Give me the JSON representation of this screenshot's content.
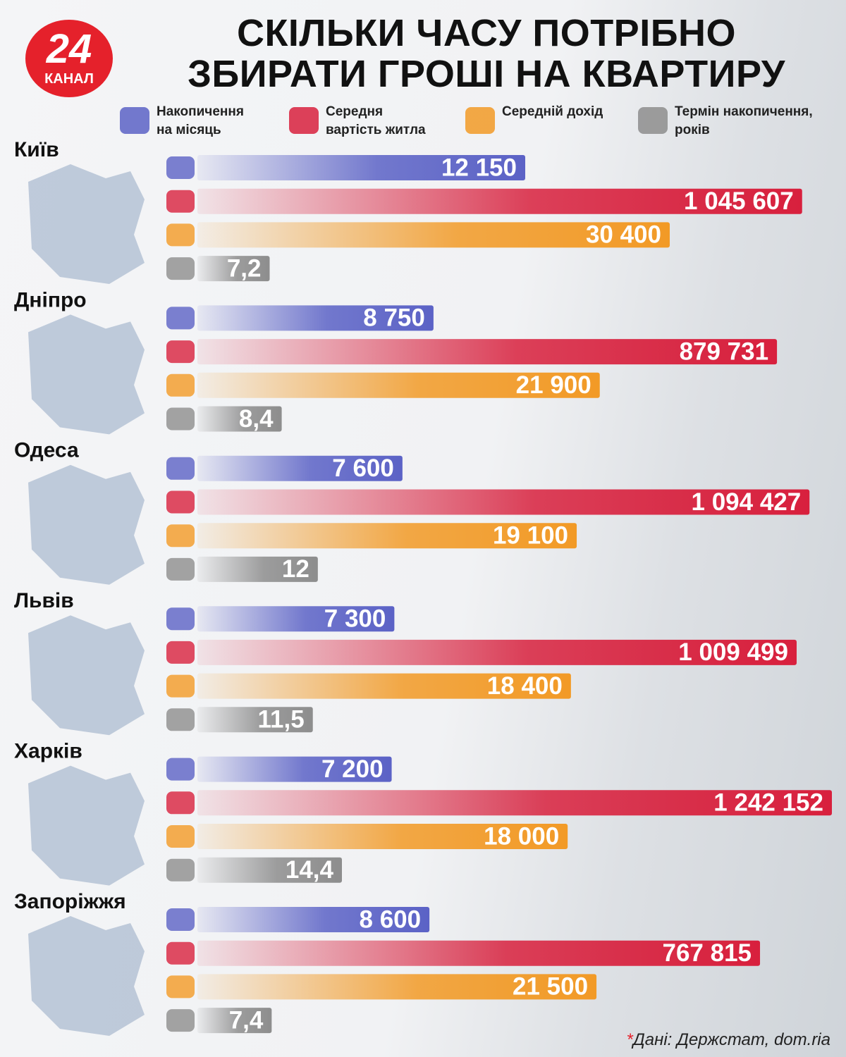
{
  "logo": {
    "number": "24",
    "text": "КАНАЛ"
  },
  "note": "Дані: Держстат, dom.ria",
  "chart_data": {
    "type": "bar",
    "title": "СКІЛЬКИ ЧАСУ ПОТРІБНО\nЗБИРАТИ ГРОШІ НА КВАРТИРУ",
    "categories": [
      "Київ",
      "Дніпро",
      "Одеса",
      "Львів",
      "Харків",
      "Запоріжжя"
    ],
    "series": [
      {
        "name": "Накопичення\nна місяць",
        "color": "#5b62c6",
        "values": [
          12150,
          8750,
          7600,
          7300,
          7200,
          8600
        ],
        "value_labels": [
          "12 150",
          "8 750",
          "7 600",
          "7 300",
          "7 200",
          "8 600"
        ]
      },
      {
        "name": "Середня\nвартість житла",
        "color": "#d8203d",
        "values": [
          1045607,
          879731,
          1094427,
          1009499,
          1242152,
          767815
        ],
        "value_labels": [
          "1 045 607",
          "879 731",
          "1 094 427",
          "1 009 499",
          "1 242 152",
          "767 815"
        ]
      },
      {
        "name": "Середній дохід",
        "color": "#f29a26",
        "values": [
          30400,
          21900,
          19100,
          18400,
          18000,
          21500
        ],
        "value_labels": [
          "30 400",
          "21 900",
          "19 100",
          "18 400",
          "18 000",
          "21 500"
        ]
      },
      {
        "name": "Термін накопичення,\nроків",
        "color": "#8d8d8d",
        "values": [
          7.2,
          8.4,
          12,
          11.5,
          14.4,
          7.4
        ],
        "value_labels": [
          "7,2",
          "8,4",
          "12",
          "11,5",
          "14,4",
          "7,4"
        ]
      }
    ]
  }
}
